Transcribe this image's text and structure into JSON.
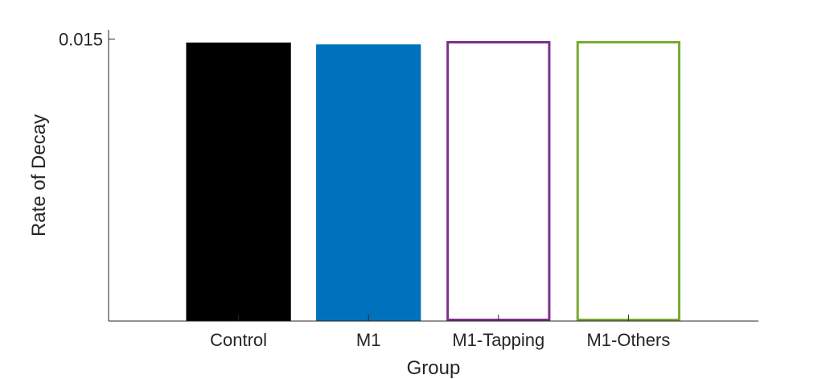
{
  "chart_data": {
    "type": "bar",
    "title": "",
    "xlabel": "Group",
    "ylabel": "Rate of Decay",
    "categories": [
      "Control",
      "M1",
      "M1-Tapping",
      "M1-Others"
    ],
    "values": [
      0.0148,
      0.0147,
      0.0149,
      0.0149
    ],
    "ylim": [
      0,
      0.0155
    ],
    "yticks": [
      0.015
    ],
    "ytick_labels": [
      "0.015"
    ],
    "grid": false,
    "legend": "none",
    "bar_styles": [
      {
        "fill": "#000000",
        "edge": "#000000",
        "filled": true
      },
      {
        "fill": "#0072BD",
        "edge": "#0072BD",
        "filled": true
      },
      {
        "fill": "none",
        "edge": "#7E2F8E",
        "filled": false
      },
      {
        "fill": "none",
        "edge": "#77AC30",
        "filled": false
      }
    ]
  }
}
